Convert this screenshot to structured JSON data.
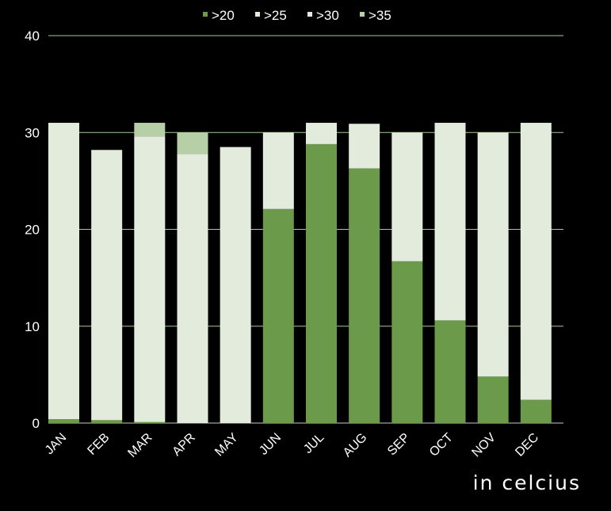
{
  "chart_data": {
    "type": "bar",
    "stacked": true,
    "categories": [
      "JAN",
      "FEB",
      "MAR",
      "APR",
      "MAY",
      "JUN",
      "JUL",
      "AUG",
      "SEP",
      "OCT",
      "NOV",
      "DEC"
    ],
    "series": [
      {
        "name": ">20",
        "color": "#6a9a4a",
        "values": [
          0.4,
          0.3,
          0.1,
          0,
          0,
          22.1,
          28.8,
          26.3,
          16.7,
          10.6,
          4.8,
          2.4
        ]
      },
      {
        "name": ">25",
        "color": "#e2ebdc",
        "values": [
          30.6,
          27.9,
          29.5,
          27.8,
          28.5,
          7.9,
          2.2,
          4.6,
          13.3,
          20.4,
          25.2,
          28.6
        ]
      },
      {
        "name": ">30",
        "color": "#e2ebdc",
        "values": [
          0,
          0,
          0,
          0,
          0,
          0,
          0,
          0,
          0,
          0,
          0,
          0
        ]
      },
      {
        "name": ">35",
        "color": "#b7cfa6",
        "values": [
          0,
          0,
          1.4,
          2.2,
          0,
          0,
          0,
          0,
          0,
          0,
          0,
          0
        ]
      }
    ],
    "ylim": [
      0,
      40
    ],
    "yticks": [
      0,
      10,
      20,
      30,
      40
    ],
    "ylabel": "",
    "xlabel": "",
    "unit_label": "in celcius",
    "grid": true,
    "legend_position": "top"
  }
}
